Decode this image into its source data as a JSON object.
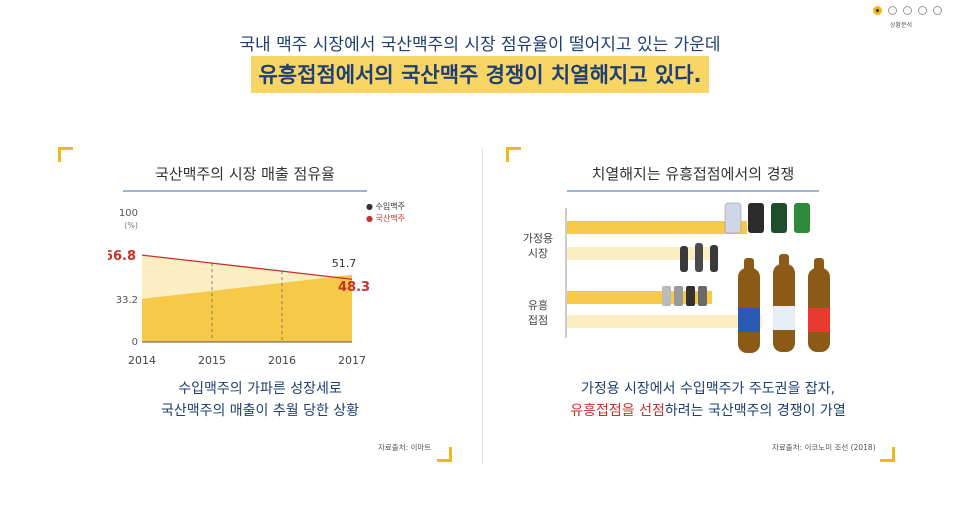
{
  "nav": {
    "label": "상황분석"
  },
  "headline": {
    "line1": "국내 맥주 시장에서 국산맥주의 시장 점유율이 떨어지고 있는 가운데",
    "line2": "유흥접점에서의 국산맥주 경쟁이 치열해지고 있다."
  },
  "left_panel": {
    "title": "국산맥주의 시장 매출 점유율",
    "caption_line1": "수입맥주의 가파른 성장세로",
    "caption_line2": "국산맥주의 매출이 추월 당한 상황",
    "source": "자료출처: 이마트"
  },
  "right_panel": {
    "title": "치열해지는 유흥접점에서의 경쟁",
    "row1_label_a": "가정용",
    "row1_label_b": "시장",
    "row2_label_a": "유흥",
    "row2_label_b": "접점",
    "caption_line1": "가정용 시장에서 수입맥주가 주도권을 잡자,",
    "caption_red": "유흥접점을 선점",
    "caption_rest": "하려는 국산맥주의 경쟁이 가열",
    "source": "자료출처: 이코노미 조선 (2018)"
  },
  "colors": {
    "accent": "#f0b81c",
    "navy": "#1e3f73",
    "domestic": "#c9302c",
    "imported_fill": "#f7c948",
    "domestic_fill": "#fbeec2"
  },
  "chart_data": {
    "type": "area",
    "x": [
      "2014",
      "2015",
      "2016",
      "2017"
    ],
    "ylim": [
      0,
      100
    ],
    "y_unit": "(%)",
    "yticks": [
      "100",
      "33.2",
      "0"
    ],
    "series": [
      {
        "name": "수입맥주",
        "values": [
          33.2,
          39.3,
          45.5,
          51.7
        ],
        "labels": [
          "33.2",
          "",
          "",
          "51.7"
        ]
      },
      {
        "name": "국산맥주",
        "values": [
          66.8,
          60.7,
          54.5,
          48.3
        ],
        "labels": [
          "66.8",
          "",
          "",
          "48.3"
        ]
      }
    ],
    "legend": "top-right"
  }
}
